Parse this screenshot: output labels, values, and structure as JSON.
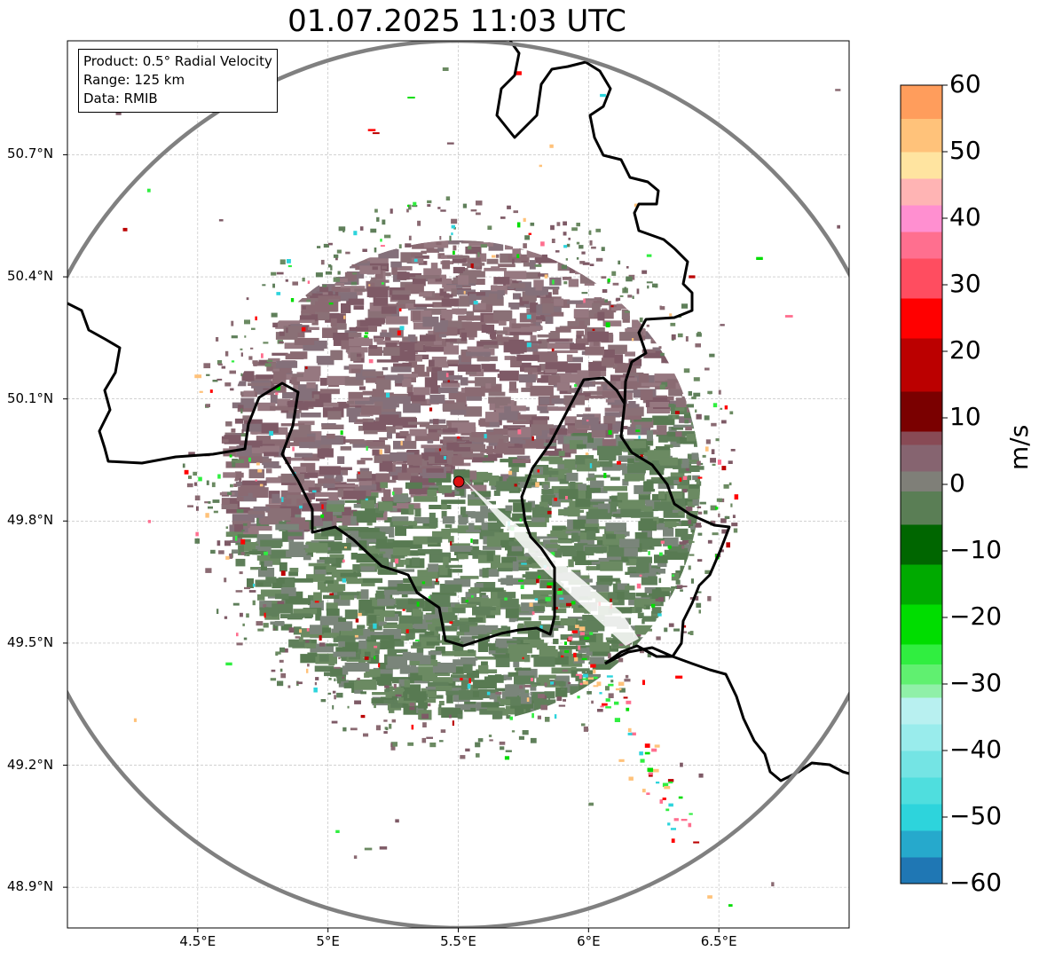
{
  "title": "01.07.2025 11:03 UTC",
  "info_box": {
    "product": "Product: 0.5° Radial Velocity",
    "range": "Range: 125 km",
    "data": "Data: RMIB"
  },
  "map": {
    "lon_range": [
      4.0,
      7.0
    ],
    "lat_range": [
      48.8,
      50.98
    ],
    "lon_ticks": [
      {
        "value": 4.5,
        "label": "4.5°E"
      },
      {
        "value": 5.0,
        "label": "5°E"
      },
      {
        "value": 5.5,
        "label": "5.5°E"
      },
      {
        "value": 6.0,
        "label": "6°E"
      },
      {
        "value": 6.5,
        "label": "6.5°E"
      }
    ],
    "lat_ticks": [
      {
        "value": 48.9,
        "label": "48.9°N"
      },
      {
        "value": 49.2,
        "label": "49.2°N"
      },
      {
        "value": 49.5,
        "label": "49.5°N"
      },
      {
        "value": 49.8,
        "label": "49.8°N"
      },
      {
        "value": 50.1,
        "label": "50.1°N"
      },
      {
        "value": 50.4,
        "label": "50.4°N"
      },
      {
        "value": 50.7,
        "label": "50.7°N"
      }
    ],
    "grid": true,
    "radar_site": {
      "lon": 5.505,
      "lat": 49.915,
      "color": "#dd1111"
    },
    "range_ring_color": "#808080",
    "border_color": "#000000",
    "approaching_color": "#5f7f5a",
    "receding_color": "#8a6a72"
  },
  "colorbar": {
    "unit": "m/s",
    "min": -60,
    "max": 60,
    "ticks": [
      {
        "value": 60,
        "label": "60"
      },
      {
        "value": 50,
        "label": "50"
      },
      {
        "value": 40,
        "label": "40"
      },
      {
        "value": 30,
        "label": "30"
      },
      {
        "value": 20,
        "label": "20"
      },
      {
        "value": 10,
        "label": "10"
      },
      {
        "value": 0,
        "label": "0"
      },
      {
        "value": -10,
        "label": "−10"
      },
      {
        "value": -20,
        "label": "−20"
      },
      {
        "value": -30,
        "label": "−30"
      },
      {
        "value": -40,
        "label": "−40"
      },
      {
        "value": -50,
        "label": "−50"
      },
      {
        "value": -60,
        "label": "−60"
      }
    ],
    "stops": [
      {
        "from": -60,
        "to": -56,
        "color": "#1f77b4"
      },
      {
        "from": -56,
        "to": -52,
        "color": "#26a9cc"
      },
      {
        "from": -52,
        "to": -48,
        "color": "#2dd4dc"
      },
      {
        "from": -48,
        "to": -44,
        "color": "#4fdede"
      },
      {
        "from": -44,
        "to": -40,
        "color": "#74e4e4"
      },
      {
        "from": -40,
        "to": -36,
        "color": "#99ecec"
      },
      {
        "from": -36,
        "to": -32,
        "color": "#b8f0f0"
      },
      {
        "from": -32,
        "to": -30,
        "color": "#90f0a8"
      },
      {
        "from": -30,
        "to": -27,
        "color": "#60f070"
      },
      {
        "from": -27,
        "to": -24,
        "color": "#30ee40"
      },
      {
        "from": -24,
        "to": -18,
        "color": "#00dd00"
      },
      {
        "from": -18,
        "to": -12,
        "color": "#00aa00"
      },
      {
        "from": -12,
        "to": -6,
        "color": "#006600"
      },
      {
        "from": -6,
        "to": -1,
        "color": "#5a7e55"
      },
      {
        "from": -1,
        "to": 2,
        "color": "#7f7f78"
      },
      {
        "from": 2,
        "to": 6,
        "color": "#866470"
      },
      {
        "from": 6,
        "to": 8,
        "color": "#884a55"
      },
      {
        "from": 8,
        "to": 14,
        "color": "#7a0000"
      },
      {
        "from": 14,
        "to": 22,
        "color": "#bb0000"
      },
      {
        "from": 22,
        "to": 28,
        "color": "#ff0000"
      },
      {
        "from": 28,
        "to": 34,
        "color": "#ff4d60"
      },
      {
        "from": 34,
        "to": 38,
        "color": "#ff6f8f"
      },
      {
        "from": 38,
        "to": 42,
        "color": "#ff8fd0"
      },
      {
        "from": 42,
        "to": 46,
        "color": "#ffb4b4"
      },
      {
        "from": 46,
        "to": 50,
        "color": "#ffe4a0"
      },
      {
        "from": 50,
        "to": 55,
        "color": "#ffc27a"
      },
      {
        "from": 55,
        "to": 60,
        "color": "#ff9d5c"
      }
    ]
  }
}
